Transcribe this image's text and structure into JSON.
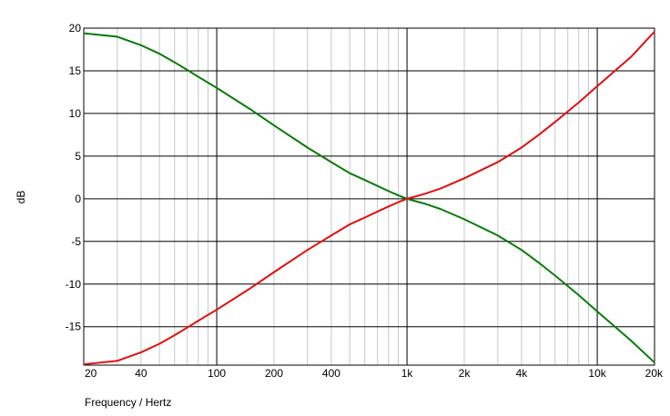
{
  "chart_data": {
    "type": "line",
    "xlabel": "Frequency / Hertz",
    "ylabel": "dB",
    "xscale": "log",
    "xlim": [
      20,
      20000
    ],
    "ylim": [
      -19.5,
      20
    ],
    "grid": true,
    "legend": "none",
    "x_ticks": [
      {
        "value": 20,
        "label": "20"
      },
      {
        "value": 40,
        "label": "40"
      },
      {
        "value": 100,
        "label": "100"
      },
      {
        "value": 200,
        "label": "200"
      },
      {
        "value": 400,
        "label": "400"
      },
      {
        "value": 1000,
        "label": "1k"
      },
      {
        "value": 2000,
        "label": "2k"
      },
      {
        "value": 4000,
        "label": "4k"
      },
      {
        "value": 10000,
        "label": "10k"
      },
      {
        "value": 20000,
        "label": "20k"
      }
    ],
    "y_ticks": [
      {
        "value": 20,
        "label": "20"
      },
      {
        "value": 15,
        "label": "15"
      },
      {
        "value": 10,
        "label": "10"
      },
      {
        "value": 5,
        "label": "5"
      },
      {
        "value": 0,
        "label": "0"
      },
      {
        "value": -5,
        "label": "-5"
      },
      {
        "value": -10,
        "label": "-10"
      },
      {
        "value": -15,
        "label": "-15"
      }
    ],
    "series": [
      {
        "color": "#0a7a0a",
        "points": [
          [
            20,
            19.4
          ],
          [
            30,
            19.0
          ],
          [
            40,
            18.0
          ],
          [
            50,
            17.0
          ],
          [
            60,
            16.0
          ],
          [
            70,
            15.1
          ],
          [
            80,
            14.3
          ],
          [
            100,
            13.0
          ],
          [
            150,
            10.5
          ],
          [
            200,
            8.6
          ],
          [
            300,
            6.0
          ],
          [
            400,
            4.3
          ],
          [
            500,
            3.0
          ],
          [
            600,
            2.2
          ],
          [
            700,
            1.5
          ],
          [
            800,
            0.9
          ],
          [
            900,
            0.4
          ],
          [
            1000,
            0.0
          ],
          [
            1250,
            -0.6
          ],
          [
            1500,
            -1.2
          ],
          [
            2000,
            -2.4
          ],
          [
            3000,
            -4.3
          ],
          [
            4000,
            -6.0
          ],
          [
            5000,
            -7.6
          ],
          [
            6000,
            -9.0
          ],
          [
            8000,
            -11.3
          ],
          [
            10000,
            -13.2
          ],
          [
            15000,
            -16.6
          ],
          [
            20000,
            -19.2
          ]
        ]
      },
      {
        "color": "#e01010",
        "points": [
          [
            20,
            -19.4
          ],
          [
            30,
            -19.0
          ],
          [
            40,
            -18.0
          ],
          [
            50,
            -17.0
          ],
          [
            60,
            -16.0
          ],
          [
            70,
            -15.1
          ],
          [
            80,
            -14.3
          ],
          [
            100,
            -13.0
          ],
          [
            150,
            -10.5
          ],
          [
            200,
            -8.6
          ],
          [
            300,
            -6.0
          ],
          [
            400,
            -4.3
          ],
          [
            500,
            -3.0
          ],
          [
            600,
            -2.2
          ],
          [
            700,
            -1.5
          ],
          [
            800,
            -0.9
          ],
          [
            900,
            -0.4
          ],
          [
            1000,
            0.0
          ],
          [
            1250,
            0.6
          ],
          [
            1500,
            1.2
          ],
          [
            2000,
            2.4
          ],
          [
            3000,
            4.3
          ],
          [
            4000,
            6.0
          ],
          [
            5000,
            7.6
          ],
          [
            6000,
            9.0
          ],
          [
            8000,
            11.3
          ],
          [
            10000,
            13.2
          ],
          [
            15000,
            16.6
          ],
          [
            20000,
            19.6
          ]
        ]
      }
    ]
  }
}
